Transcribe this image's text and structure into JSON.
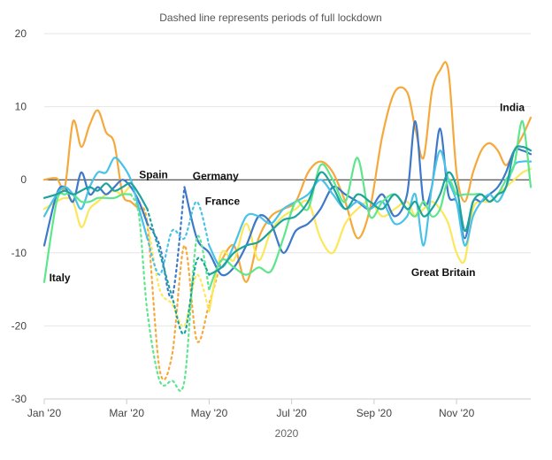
{
  "chart_data": {
    "type": "line",
    "subtitle": "Dashed line represents periods of full lockdown",
    "xlabel": "2020",
    "ylabel": "",
    "ylim": [
      -30,
      20
    ],
    "xlim": [
      0,
      11.8
    ],
    "yticks": [
      20,
      10,
      0,
      -10,
      -20,
      -30
    ],
    "xticks": [
      {
        "value": 0,
        "label": "Jan '20"
      },
      {
        "value": 2,
        "label": "Mar '20"
      },
      {
        "value": 4,
        "label": "May '20"
      },
      {
        "value": 6,
        "label": "Jul '20"
      },
      {
        "value": 8,
        "label": "Sep '20"
      },
      {
        "value": 10,
        "label": "Nov '20"
      }
    ],
    "zero_line": true,
    "grid": true,
    "series": [
      {
        "name": "India",
        "color": "#f5a93c",
        "x": [
          0,
          0.3,
          0.5,
          0.7,
          0.9,
          1.1,
          1.3,
          1.5,
          1.7,
          1.9,
          2.1,
          2.3,
          2.5,
          2.8,
          3.1,
          3.4,
          3.7,
          4.0,
          4.3,
          4.6,
          4.9,
          5.2,
          5.5,
          5.8,
          6.1,
          6.4,
          6.7,
          7.0,
          7.3,
          7.6,
          7.9,
          8.2,
          8.5,
          8.8,
          9.0,
          9.2,
          9.4,
          9.6,
          9.8,
          10.0,
          10.2,
          10.4,
          10.6,
          10.8,
          11.0,
          11.2,
          11.4,
          11.6,
          11.8
        ],
        "y": [
          0,
          0.2,
          -1,
          8,
          4.5,
          7.5,
          9.5,
          6.5,
          5,
          -2,
          -3,
          -4,
          -6,
          -26,
          -24,
          -9,
          -22,
          -17,
          -11,
          -9,
          -14,
          -8,
          -5,
          -4,
          -3,
          1,
          2.5,
          1,
          -3,
          -8,
          -4,
          6,
          12,
          12,
          7,
          3,
          12,
          15,
          15,
          1,
          -3,
          1,
          4,
          5,
          4,
          2,
          4,
          6,
          8.5
        ],
        "dash": [
          [
            2.5,
            4.3
          ]
        ]
      },
      {
        "name": "Spain",
        "color": "#fce75a",
        "x": [
          0,
          0.3,
          0.5,
          0.7,
          0.9,
          1.1,
          1.3,
          1.5,
          1.7,
          1.9,
          2.1,
          2.3,
          2.5,
          2.8,
          3.1,
          3.4,
          3.7,
          4.0,
          4.3,
          4.6,
          4.9,
          5.2,
          5.5,
          5.8,
          6.1,
          6.4,
          6.7,
          7.0,
          7.3,
          7.6,
          7.9,
          8.2,
          8.5,
          8.8,
          9.0,
          9.2,
          9.4,
          9.6,
          9.8,
          10.0,
          10.2,
          10.4,
          10.6,
          10.8,
          11.0,
          11.2,
          11.4,
          11.6,
          11.8
        ],
        "y": [
          -4,
          -3,
          -2.5,
          -3,
          -6.5,
          -4,
          -3,
          -2,
          -1.5,
          -2,
          -1,
          -3,
          -6,
          -15,
          -17,
          -20,
          -13,
          -18,
          -10,
          -11,
          -6,
          -11,
          -7,
          -5,
          -4,
          -3,
          -8,
          -10,
          -6,
          -4,
          -3,
          -5,
          -4,
          -3,
          -5,
          -4,
          -3,
          -4,
          -6,
          -10,
          -11,
          -4,
          -3,
          -3,
          -2,
          -1,
          0,
          1,
          1.5
        ],
        "dash": [
          [
            2.4,
            4.0
          ]
        ]
      },
      {
        "name": "Germany",
        "color": "#3e78c8",
        "x": [
          0,
          0.3,
          0.5,
          0.7,
          0.9,
          1.1,
          1.3,
          1.5,
          1.7,
          1.9,
          2.1,
          2.3,
          2.5,
          2.8,
          3.1,
          3.4,
          3.7,
          4.0,
          4.3,
          4.6,
          4.9,
          5.2,
          5.5,
          5.8,
          6.1,
          6.4,
          6.7,
          7.0,
          7.3,
          7.6,
          7.9,
          8.2,
          8.5,
          8.8,
          9.0,
          9.2,
          9.4,
          9.6,
          9.8,
          10.0,
          10.2,
          10.4,
          10.6,
          10.8,
          11.0,
          11.2,
          11.4,
          11.6,
          11.8
        ],
        "y": [
          -9,
          -2,
          -1,
          -3,
          1,
          -2,
          -1,
          -2,
          -1,
          0,
          -1,
          -3,
          -6,
          -9,
          -16,
          -1,
          -8,
          -10,
          -13,
          -12,
          -9,
          -5,
          -6,
          -10,
          -7,
          -6,
          -4,
          -1,
          -2,
          -3,
          -4,
          -2,
          -5,
          -2,
          8,
          -3,
          -1,
          7,
          -2,
          -3,
          -8,
          -3,
          -3,
          -2,
          -1,
          1,
          4,
          4,
          3.5
        ],
        "dash": [
          [
            2.8,
            3.5
          ]
        ]
      },
      {
        "name": "France",
        "color": "#48c2e8",
        "x": [
          0,
          0.3,
          0.5,
          0.7,
          0.9,
          1.1,
          1.3,
          1.5,
          1.7,
          1.9,
          2.1,
          2.3,
          2.5,
          2.8,
          3.1,
          3.4,
          3.7,
          4.0,
          4.3,
          4.6,
          4.9,
          5.2,
          5.5,
          5.8,
          6.1,
          6.4,
          6.7,
          7.0,
          7.3,
          7.6,
          7.9,
          8.2,
          8.5,
          8.8,
          9.0,
          9.2,
          9.4,
          9.6,
          9.8,
          10.0,
          10.2,
          10.4,
          10.6,
          10.8,
          11.0,
          11.2,
          11.4,
          11.6,
          11.8
        ],
        "y": [
          -5,
          -2,
          -1,
          -2,
          -4,
          -1,
          1,
          1,
          3,
          2,
          0,
          -4,
          -8,
          -13,
          -7,
          -8,
          -3,
          -9,
          -12,
          -9,
          -5,
          -5,
          -6,
          -4,
          -3,
          -2,
          0,
          -2,
          -4,
          -3,
          -4,
          -3,
          -6,
          -5,
          -2,
          -9,
          -1,
          4,
          0,
          -3,
          -9,
          -5,
          -3,
          -2,
          -3,
          -1,
          2,
          2.5,
          2.5
        ],
        "dash": [
          [
            2.8,
            4.1
          ]
        ]
      },
      {
        "name": "Italy",
        "color": "#5ee68c",
        "x": [
          0,
          0.3,
          0.5,
          0.7,
          0.9,
          1.1,
          1.3,
          1.5,
          1.7,
          1.9,
          2.1,
          2.3,
          2.5,
          2.8,
          3.1,
          3.4,
          3.7,
          4.0,
          4.3,
          4.6,
          4.9,
          5.2,
          5.5,
          5.8,
          6.1,
          6.4,
          6.7,
          7.0,
          7.3,
          7.6,
          7.9,
          8.2,
          8.5,
          8.8,
          9.0,
          9.2,
          9.4,
          9.6,
          9.8,
          10.0,
          10.2,
          10.4,
          10.6,
          10.8,
          11.0,
          11.2,
          11.4,
          11.6,
          11.8
        ],
        "y": [
          -14,
          -3,
          -2,
          -2,
          -3,
          -3,
          -2.5,
          -2.5,
          -2.5,
          -2,
          -2,
          -5,
          -18,
          -27.5,
          -27.5,
          -27.5,
          -8,
          -15,
          -11,
          -12,
          -13,
          -12,
          -12.5,
          -8,
          -3,
          -4,
          2,
          0,
          -3,
          3,
          -5,
          -3,
          -2,
          -4,
          -5,
          -3,
          -5,
          -4,
          0,
          -2,
          -2,
          -2,
          -2,
          -3,
          -2,
          0,
          2,
          8,
          -1
        ],
        "dash": [
          [
            2.3,
            4.0
          ]
        ]
      },
      {
        "name": "Great Britain",
        "color": "#1ba39c",
        "x": [
          0,
          0.3,
          0.5,
          0.7,
          0.9,
          1.1,
          1.3,
          1.5,
          1.7,
          1.9,
          2.1,
          2.3,
          2.5,
          2.8,
          3.1,
          3.4,
          3.7,
          4.0,
          4.3,
          4.6,
          4.9,
          5.2,
          5.5,
          5.8,
          6.1,
          6.4,
          6.7,
          7.0,
          7.3,
          7.6,
          7.9,
          8.2,
          8.5,
          8.8,
          9.0,
          9.2,
          9.4,
          9.6,
          9.8,
          10.0,
          10.2,
          10.4,
          10.6,
          10.8,
          11.0,
          11.2,
          11.4,
          11.6,
          11.8
        ],
        "y": [
          -2.5,
          -2,
          -1.5,
          -2,
          -1.5,
          -1,
          -1.5,
          -0.5,
          -1.5,
          -1,
          -0.5,
          -2,
          -4,
          -10,
          -16,
          -21,
          -11,
          -13,
          -12,
          -10,
          -9,
          -8.5,
          -7,
          -5.5,
          -5,
          -3,
          1,
          -1,
          -4,
          -2,
          -3,
          -4,
          -2,
          -4,
          -3,
          -5,
          -4,
          -2,
          1,
          -1,
          -7,
          -3,
          -2,
          -3,
          -2,
          -1,
          4,
          4.5,
          4
        ],
        "dash": [
          [
            2.6,
            4.0
          ]
        ]
      }
    ],
    "annotations": [
      {
        "text": "Spain",
        "x": 2.3,
        "y": 0.2
      },
      {
        "text": "Germany",
        "x": 3.6,
        "y": 0
      },
      {
        "text": "France",
        "x": 3.9,
        "y": -3.4
      },
      {
        "text": "Italy",
        "x": 0.12,
        "y": -13.9
      },
      {
        "text": "Great Britain",
        "x": 8.9,
        "y": -13.2
      },
      {
        "text": "India",
        "x": 11.05,
        "y": 9.4
      }
    ]
  }
}
